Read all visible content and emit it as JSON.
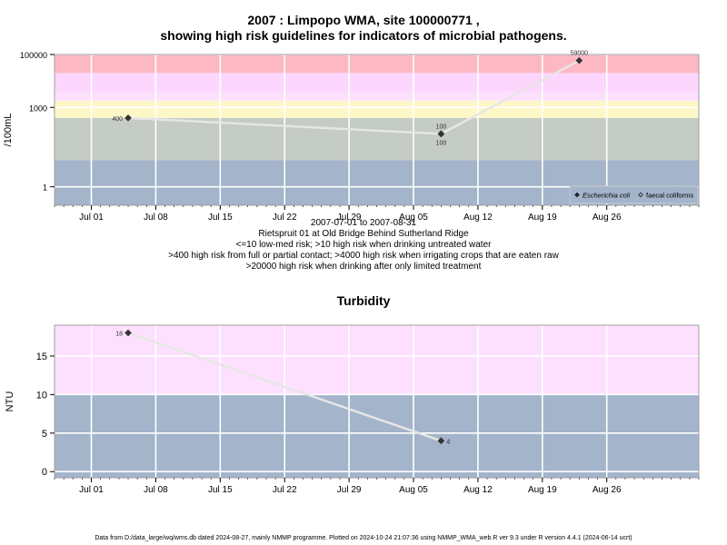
{
  "chart_data": [
    {
      "type": "line",
      "title_line1": "2007 : Limpopo WMA, site 100000771 ,",
      "title_line2": "showing high risk guidelines for indicators of microbial pathogens.",
      "ylabel": "/100mL",
      "yscale": "log",
      "ylim": [
        0.2,
        100000
      ],
      "yticks": [
        {
          "value": 1,
          "label": "1"
        },
        {
          "value": 1000,
          "label": "1000"
        },
        {
          "value": 100000,
          "label": "100000"
        }
      ],
      "xlim": [
        "2007-06-27",
        "2007-09-05"
      ],
      "xticks": [
        "Jul 01",
        "Jul 08",
        "Jul 15",
        "Jul 22",
        "Jul 29",
        "Aug 05",
        "Aug 12",
        "Aug 19",
        "Aug 26"
      ],
      "xtick_dates": [
        "2007-07-01",
        "2007-07-08",
        "2007-07-15",
        "2007-07-22",
        "2007-07-29",
        "2007-08-05",
        "2007-08-12",
        "2007-08-19",
        "2007-08-26"
      ],
      "bands": [
        {
          "from": 0.2,
          "to": 10,
          "color": "#a3b4cb"
        },
        {
          "from": 10,
          "to": 400,
          "color": "#c5cbc5"
        },
        {
          "from": 400,
          "to": 1800,
          "color": "#fdf7c8"
        },
        {
          "from": 1800,
          "to": 4000,
          "color": "#fde0fd"
        },
        {
          "from": 4000,
          "to": 20000,
          "color": "#fdd6fd"
        },
        {
          "from": 20000,
          "to": 100000,
          "color": "#fdb8c3"
        }
      ],
      "series": [
        {
          "name": "Escherichia coli",
          "marker": "filled-diamond",
          "x": [
            "2007-07-05",
            "2007-08-08",
            "2007-08-23"
          ],
          "y": [
            400,
            100,
            59000
          ],
          "labels": [
            "400",
            "100",
            "59000"
          ]
        },
        {
          "name": "faecal coliforms",
          "marker": "open-diamond",
          "x": [
            "2007-08-08"
          ],
          "y": [
            100
          ],
          "labels": [
            "100"
          ]
        }
      ],
      "legend_position": "bottom-right",
      "caption": [
        "2007-07-01 to 2007-08-31",
        "Rietspruit 01 at Old Bridge Behind Sutherland Ridge",
        "<=10 low-med risk; >10 high risk when drinking untreated water",
        ">400 high risk from full or partial contact; >4000 high risk when irrigating crops that are eaten raw",
        ">20000 high risk when drinking after only limited treatment"
      ]
    },
    {
      "type": "line",
      "title": "Turbidity",
      "ylabel": "NTU",
      "ylim": [
        -0.8,
        19
      ],
      "yticks": [
        0,
        5,
        10,
        15
      ],
      "xlim": [
        "2007-06-27",
        "2007-09-05"
      ],
      "xticks": [
        "Jul 01",
        "Jul 08",
        "Jul 15",
        "Jul 22",
        "Jul 29",
        "Aug 05",
        "Aug 12",
        "Aug 19",
        "Aug 26"
      ],
      "xtick_dates": [
        "2007-07-01",
        "2007-07-08",
        "2007-07-15",
        "2007-07-22",
        "2007-07-29",
        "2007-08-05",
        "2007-08-12",
        "2007-08-19",
        "2007-08-26"
      ],
      "bands": [
        {
          "from": -0.8,
          "to": 10,
          "color": "#a3b4cb"
        },
        {
          "from": 10,
          "to": 19,
          "color": "#fde0fd"
        }
      ],
      "series": [
        {
          "name": "Turbidity",
          "marker": "filled-diamond",
          "x": [
            "2007-07-05",
            "2007-08-08"
          ],
          "y": [
            18,
            4
          ],
          "labels": [
            "18",
            "4"
          ]
        }
      ]
    }
  ],
  "footer": "Data from D:/data_large/wq/wms.db dated 2024-08-27, mainly NMMP programme. Plotted on 2024-10-24 21:07:36 using NMMP_WMA_web.R ver 9.3 under R version 4.4.1 (2024-06-14 ucrt)"
}
